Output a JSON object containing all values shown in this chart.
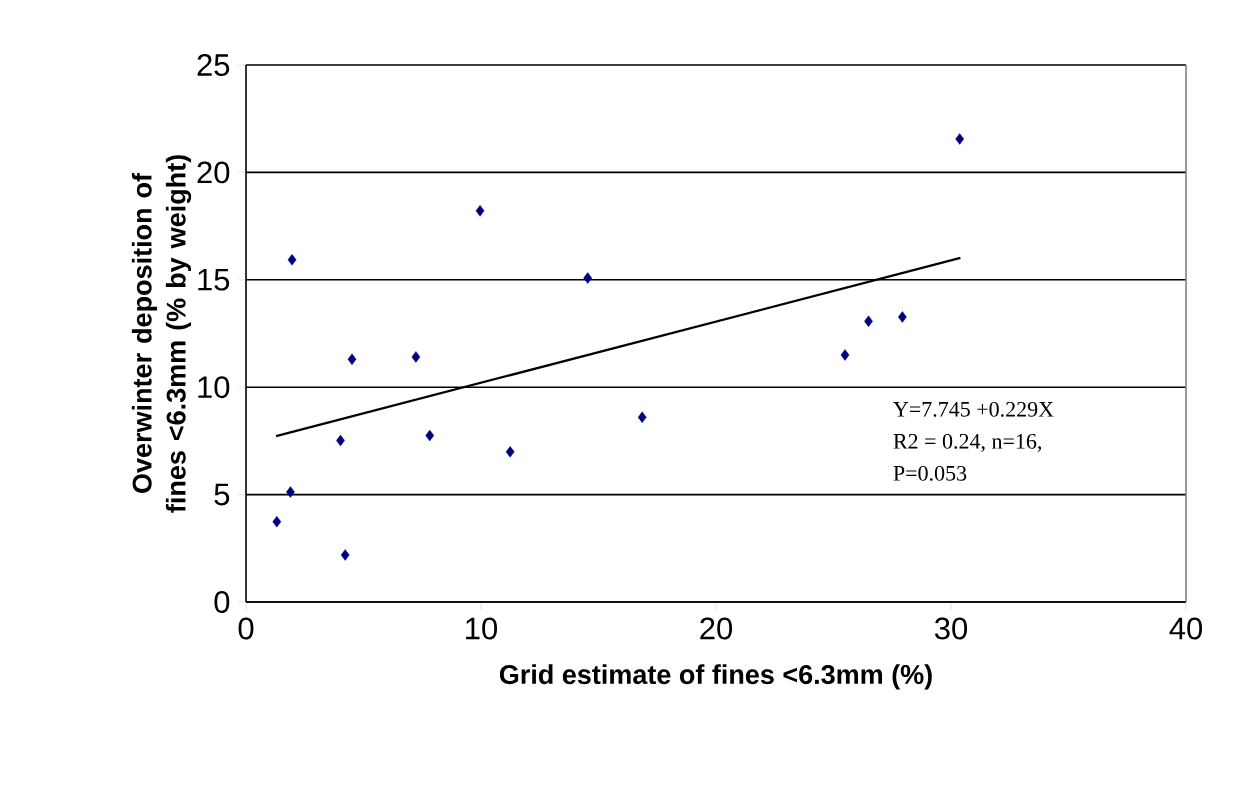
{
  "chart_data": {
    "type": "scatter",
    "xlabel": "Grid estimate of fines <6.3mm (%)",
    "ylabel": "Overwinter deposition of fines <6.3mm (% by weight)",
    "xlim": [
      0,
      40
    ],
    "ylim": [
      0,
      25
    ],
    "xticks": [
      0,
      10,
      20,
      30,
      40
    ],
    "yticks": [
      0,
      5,
      10,
      15,
      20,
      25
    ],
    "grid": "y",
    "series": [
      {
        "marker": "diamond",
        "color": "#000080",
        "x": [
          1.96,
          9.96,
          4.51,
          7.23,
          4.02,
          7.82,
          11.24,
          1.89,
          1.31,
          4.22,
          14.54,
          16.86,
          25.49,
          26.49,
          27.93,
          30.37
        ],
        "values": [
          15.93,
          18.21,
          11.3,
          11.41,
          7.52,
          7.75,
          6.99,
          5.12,
          3.74,
          2.19,
          15.08,
          8.6,
          11.5,
          13.07,
          13.27,
          21.56
        ]
      },
      {
        "type": "line",
        "marker": "none",
        "line_style": "solid",
        "color": "#000000",
        "x": [
          1.28,
          30.4
        ],
        "values": [
          7.72,
          16.02
        ]
      }
    ],
    "annotations": [
      "Y=7.745 +0.229X",
      "R2 = 0.24, n=16,",
      "P=0.053"
    ]
  }
}
